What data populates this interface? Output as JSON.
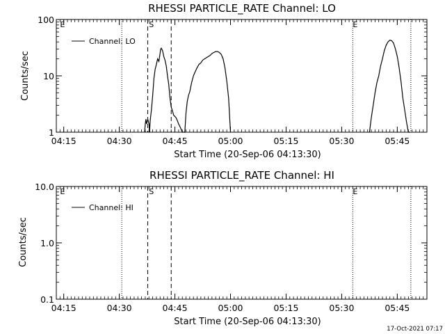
{
  "footer": {
    "timestamp": "17-Oct-2021 07:17"
  },
  "chart_data": [
    {
      "type": "line",
      "title": "RHESSI PARTICLE_RATE Channel: LO",
      "xlabel": "Start Time (20-Sep-06 04:13:30)",
      "ylabel": "Counts/sec",
      "yscale": "log",
      "xlim": [
        "04:13:00",
        "05:53:00"
      ],
      "ylim": [
        1,
        100
      ],
      "x_ticks": [
        "04:15",
        "04:30",
        "04:45",
        "05:00",
        "05:15",
        "05:30",
        "05:45"
      ],
      "y_ticks": [
        "1",
        "10",
        "100"
      ],
      "grid": false,
      "legend_position": "top-left",
      "series": [
        {
          "name": "Channel: LO",
          "x": [
            "04:36:50",
            "04:37:00",
            "04:37:10",
            "04:37:20",
            "04:37:40",
            "04:38:00",
            "04:38:10",
            "04:38:20",
            "04:38:40",
            "04:39:00",
            "04:39:20",
            "04:39:40",
            "04:40:00",
            "04:40:20",
            "04:40:40",
            "04:41:00",
            "04:41:10",
            "04:41:20",
            "04:41:40",
            "04:42:00",
            "04:42:20",
            "04:42:40",
            "04:43:00",
            "04:43:20",
            "04:43:40",
            "04:44:00",
            "04:44:20",
            "04:44:40",
            "04:45:00",
            "04:45:20",
            "04:45:40",
            "04:46:00",
            "04:46:30",
            "04:47:00",
            "04:47:40",
            "04:48:00",
            "04:48:20",
            "04:48:40",
            "04:49:00",
            "04:49:30",
            "04:50:00",
            "04:50:30",
            "04:51:00",
            "04:51:30",
            "04:52:00",
            "04:52:30",
            "04:53:00",
            "04:53:30",
            "04:54:00",
            "04:54:30",
            "04:55:00",
            "04:55:30",
            "04:56:00",
            "04:56:30",
            "04:57:00",
            "04:57:30",
            "04:58:00",
            "04:58:30",
            "04:59:00",
            "04:59:30",
            "05:00:00"
          ],
          "values": [
            1.0,
            1.4,
            1.7,
            1.4,
            1.7,
            1.4,
            1.0,
            1.6,
            2.5,
            4.5,
            9,
            13,
            16,
            20,
            18,
            25,
            30,
            31,
            28,
            22,
            19,
            15,
            10,
            7,
            4,
            2.8,
            2.4,
            2.0,
            1.9,
            1.8,
            1.6,
            1.4,
            1.2,
            1.0,
            1.0,
            2.2,
            3.5,
            4.5,
            5.2,
            7.5,
            10,
            12,
            14,
            16,
            17,
            19,
            20,
            21,
            22,
            23,
            25,
            26,
            27,
            27,
            26,
            24,
            20,
            14,
            8,
            4,
            1.0
          ]
        },
        {
          "name": "",
          "x": [
            "05:37:30",
            "05:38:00",
            "05:38:30",
            "05:39:00",
            "05:39:30",
            "05:40:00",
            "05:40:30",
            "05:41:00",
            "05:41:30",
            "05:42:00",
            "05:42:30",
            "05:43:00",
            "05:43:30",
            "05:44:00",
            "05:44:30",
            "05:45:00",
            "05:45:30",
            "05:46:00",
            "05:46:30",
            "05:47:00",
            "05:47:30",
            "05:48:00",
            "05:48:30"
          ],
          "values": [
            1.0,
            1.8,
            3.0,
            5.0,
            7.5,
            10,
            15,
            20,
            28,
            35,
            40,
            43,
            42,
            38,
            30,
            22,
            14,
            8,
            4,
            2.5,
            1.5,
            1.0,
            1.0
          ]
        }
      ],
      "annotations": {
        "dotted_lines": [
          "04:30:40",
          "05:33:00",
          "05:48:40"
        ],
        "dashed_lines": [
          "04:37:40",
          "04:44:00"
        ],
        "labels": [
          {
            "text": "E",
            "at": "04:14:00"
          },
          {
            "text": "S",
            "at": "04:38:00"
          },
          {
            "text": "E",
            "at": "05:33:00"
          }
        ]
      }
    },
    {
      "type": "line",
      "title": "RHESSI PARTICLE_RATE Channel: HI",
      "xlabel": "Start Time (20-Sep-06 04:13:30)",
      "ylabel": "Counts/sec",
      "yscale": "log",
      "xlim": [
        "04:13:00",
        "05:53:00"
      ],
      "ylim": [
        0.1,
        10
      ],
      "x_ticks": [
        "04:15",
        "04:30",
        "04:45",
        "05:00",
        "05:15",
        "05:30",
        "05:45"
      ],
      "y_ticks": [
        "0.1",
        "1.0",
        "10.0"
      ],
      "grid": false,
      "legend_position": "top-left",
      "series": [
        {
          "name": "Channel: HI",
          "x": [],
          "values": []
        }
      ],
      "annotations": {
        "dotted_lines": [
          "04:30:40",
          "05:33:00",
          "05:48:40"
        ],
        "dashed_lines": [
          "04:37:40",
          "04:44:00"
        ],
        "labels": [
          {
            "text": "E",
            "at": "04:14:00"
          },
          {
            "text": "S",
            "at": "04:38:00"
          },
          {
            "text": "E",
            "at": "05:33:00"
          }
        ]
      }
    }
  ]
}
